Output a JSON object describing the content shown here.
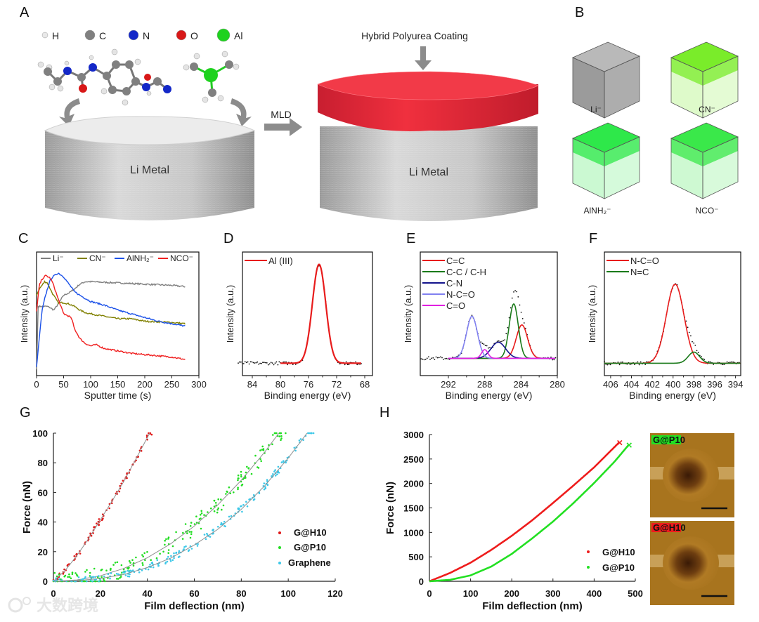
{
  "panel_labels": {
    "A": "A",
    "B": "B",
    "C": "C",
    "D": "D",
    "E": "E",
    "F": "F",
    "G": "G",
    "H": "H"
  },
  "panel_a": {
    "legend": [
      {
        "symbol": "H",
        "color": "#e8e8e8"
      },
      {
        "symbol": "C",
        "color": "#808080"
      },
      {
        "symbol": "N",
        "color": "#1428c8"
      },
      {
        "symbol": "O",
        "color": "#d81818"
      },
      {
        "symbol": "Al",
        "color": "#1ed21e"
      }
    ],
    "left_disc_label": "Li Metal",
    "arrow_label": "MLD",
    "coating_label": "Hybrid Polyurea Coating",
    "right_disc_label": "Li Metal",
    "coating_color": "#e8283c"
  },
  "panel_b": {
    "cubes": [
      {
        "label": "Li⁻",
        "color": "#8a8a8a"
      },
      {
        "label": "CN⁻",
        "color": "#7aec2a"
      },
      {
        "label": "AlNH₂⁻",
        "color": "#2ee84a"
      },
      {
        "label": "NCO⁻",
        "color": "#3ae84a"
      }
    ]
  },
  "chart_data": [
    {
      "id": "C",
      "type": "line",
      "title": "",
      "xlabel": "Sputter time (s)",
      "ylabel": "Intensity (a.u.)",
      "xlim": [
        0,
        300
      ],
      "ylim": [
        0,
        1
      ],
      "xticks": [
        0,
        50,
        100,
        150,
        200,
        250,
        300
      ],
      "legend": "top",
      "series": [
        {
          "name": "Li⁻",
          "color": "#7f7f7f",
          "x": [
            0,
            3,
            10,
            20,
            25,
            32,
            40,
            50,
            60,
            70,
            80,
            90,
            100,
            150,
            200,
            250,
            275
          ],
          "y": [
            0.05,
            0.56,
            0.56,
            0.56,
            0.55,
            0.53,
            0.58,
            0.65,
            0.67,
            0.7,
            0.74,
            0.76,
            0.76,
            0.75,
            0.74,
            0.73,
            0.72
          ]
        },
        {
          "name": "CN⁻",
          "color": "#808000",
          "x": [
            0,
            5,
            10,
            15,
            20,
            30,
            40,
            50,
            60,
            70,
            80,
            90,
            100,
            125,
            150,
            175,
            200,
            250,
            275
          ],
          "y": [
            0.65,
            0.7,
            0.73,
            0.76,
            0.75,
            0.66,
            0.59,
            0.59,
            0.58,
            0.56,
            0.53,
            0.51,
            0.5,
            0.48,
            0.46,
            0.46,
            0.44,
            0.43,
            0.42
          ]
        },
        {
          "name": "AlNH₂⁻",
          "color": "#1a50e8",
          "x": [
            0,
            5,
            10,
            15,
            20,
            25,
            30,
            40,
            50,
            60,
            70,
            80,
            100,
            125,
            150,
            175,
            200,
            225,
            250,
            275
          ],
          "y": [
            0.07,
            0.3,
            0.52,
            0.62,
            0.7,
            0.77,
            0.8,
            0.83,
            0.8,
            0.74,
            0.68,
            0.65,
            0.6,
            0.57,
            0.53,
            0.5,
            0.47,
            0.44,
            0.42,
            0.4
          ]
        },
        {
          "name": "NCO⁻",
          "color": "#f02020",
          "x": [
            0,
            5,
            10,
            17,
            25,
            30,
            40,
            50,
            60,
            65,
            70,
            80,
            90,
            100,
            110,
            125,
            150,
            175,
            200,
            225,
            250,
            275
          ],
          "y": [
            0.52,
            0.73,
            0.78,
            0.81,
            0.79,
            0.75,
            0.62,
            0.5,
            0.48,
            0.46,
            0.38,
            0.3,
            0.26,
            0.24,
            0.25,
            0.22,
            0.2,
            0.18,
            0.17,
            0.16,
            0.15,
            0.13
          ]
        }
      ]
    },
    {
      "id": "D",
      "type": "line",
      "title": "",
      "xlabel": "Binding energy (eV)",
      "ylabel": "Intensity (a.u.)",
      "xlim": [
        85.4,
        66.9
      ],
      "ylim": [
        0,
        1
      ],
      "xticks": [
        84,
        80,
        76,
        72,
        68
      ],
      "legend": "top-left",
      "baseline": 0.1,
      "raw_range": [
        86,
        68.5
      ],
      "fit_range": [
        80,
        68.5
      ],
      "peaks": [
        {
          "name": "Al (III)",
          "color": "#e81c1c",
          "center": 74.5,
          "height": 0.8,
          "sigma": 0.95
        }
      ]
    },
    {
      "id": "E",
      "type": "line",
      "title": "",
      "xlabel": "Binding energy (eV)",
      "ylabel": "Intensity (a.u.)",
      "xlim": [
        295.1,
        280
      ],
      "ylim": [
        0,
        1
      ],
      "xticks": [
        292,
        288,
        284,
        280
      ],
      "legend": "top-left",
      "baseline": 0.14,
      "raw_range": [
        295,
        280.2
      ],
      "fit_range": [
        292,
        280.2
      ],
      "peaks": [
        {
          "name": "C=C",
          "color": "#e81c1c",
          "center": 283.9,
          "height": 0.27,
          "sigma": 0.62
        },
        {
          "name": "C-C / C-H",
          "color": "#1a7a1a",
          "center": 284.8,
          "height": 0.44,
          "sigma": 0.5
        },
        {
          "name": "C-N",
          "color": "#14148c",
          "center": 286.5,
          "height": 0.13,
          "sigma": 0.8
        },
        {
          "name": "N-C=O",
          "color": "#8080f0",
          "center": 289.4,
          "height": 0.34,
          "sigma": 0.6
        },
        {
          "name": "C=O",
          "color": "#e020e0",
          "center": 288.0,
          "height": 0.07,
          "sigma": 0.35
        }
      ]
    },
    {
      "id": "F",
      "type": "line",
      "title": "",
      "xlabel": "Binding energy (eV)",
      "ylabel": "Intensity (a.u.)",
      "xlim": [
        406.6,
        393.5
      ],
      "ylim": [
        0,
        1
      ],
      "xticks": [
        406,
        404,
        402,
        400,
        398,
        396,
        394
      ],
      "legend": "top-left",
      "baseline": 0.1,
      "raw_range": [
        406.6,
        393.5
      ],
      "fit_range": [
        406.6,
        393.5
      ],
      "peaks": [
        {
          "name": "N-C=O",
          "color": "#e81c1c",
          "center": 399.8,
          "height": 0.64,
          "sigma": 0.85
        },
        {
          "name": "N=C",
          "color": "#1a7a1a",
          "center": 398.0,
          "height": 0.09,
          "sigma": 0.55
        }
      ]
    },
    {
      "id": "G",
      "type": "scatter",
      "title": "",
      "xlabel": "Film deflection (nm)",
      "ylabel": "Force (nN)",
      "xlim": [
        0,
        120
      ],
      "ylim": [
        0,
        100
      ],
      "xticks": [
        0,
        20,
        40,
        60,
        80,
        100,
        120
      ],
      "yticks": [
        0,
        20,
        40,
        60,
        80,
        100
      ],
      "legend": "right",
      "series": [
        {
          "name": "G@H10",
          "color": "#e01818",
          "x": [
            0,
            5,
            10,
            15,
            20,
            25,
            30,
            35,
            41
          ],
          "y": [
            0,
            7.3,
            17.3,
            28.9,
            41.5,
            54.2,
            67.5,
            82.2,
            100
          ]
        },
        {
          "name": "G@P10",
          "color": "#22dd22",
          "x": [
            0,
            10,
            20,
            30,
            40,
            50,
            60,
            70,
            80,
            90,
            96
          ],
          "y": [
            0,
            0.9,
            3.7,
            8.7,
            15.9,
            25.4,
            37.3,
            51.6,
            68.2,
            87.3,
            100
          ]
        },
        {
          "name": "Graphene",
          "color": "#3ec8e8",
          "x": [
            0,
            10,
            20,
            30,
            40,
            50,
            60,
            70,
            80,
            90,
            100,
            108
          ],
          "y": [
            0,
            0.4,
            1.9,
            4.6,
            9.3,
            15.7,
            24.5,
            35.1,
            48.6,
            64.5,
            83.2,
            100
          ]
        }
      ],
      "fit_line_color": "#909090"
    },
    {
      "id": "H",
      "type": "line",
      "title": "",
      "xlabel": "Film deflection (nm)",
      "ylabel": "Force (nN)",
      "xlim": [
        0,
        500
      ],
      "ylim": [
        0,
        3000
      ],
      "xticks": [
        0,
        100,
        200,
        300,
        400,
        500
      ],
      "yticks": [
        0,
        500,
        1000,
        1500,
        2000,
        2500,
        3000
      ],
      "legend": "bottom-right",
      "series": [
        {
          "name": "G@H10",
          "color": "#ee1c1c",
          "x": [
            0,
            50,
            100,
            150,
            200,
            250,
            300,
            350,
            400,
            462
          ],
          "y": [
            0,
            170,
            380,
            640,
            930,
            1250,
            1600,
            1960,
            2330,
            2850
          ],
          "break_marker": "×"
        },
        {
          "name": "G@P10",
          "color": "#22e022",
          "x": [
            0,
            50,
            100,
            150,
            200,
            250,
            300,
            350,
            400,
            450,
            485
          ],
          "y": [
            0,
            30,
            120,
            300,
            560,
            880,
            1220,
            1600,
            2010,
            2450,
            2800
          ],
          "break_marker": "×"
        }
      ]
    }
  ],
  "panel_h_images": [
    {
      "label": "G@P10",
      "color": "#22e022"
    },
    {
      "label": "G@H10",
      "color": "#ee1c1c"
    }
  ],
  "watermark": "大数跨境"
}
